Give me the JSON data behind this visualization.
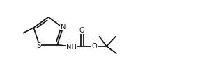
{
  "background": "#ffffff",
  "line_color": "#1a1a1a",
  "line_width": 1.3,
  "font_size": 7.2,
  "fig_width": 2.84,
  "fig_height": 0.91,
  "dpi": 100,
  "xlim": [
    0.0,
    10.5
  ],
  "ylim": [
    0.5,
    3.8
  ]
}
